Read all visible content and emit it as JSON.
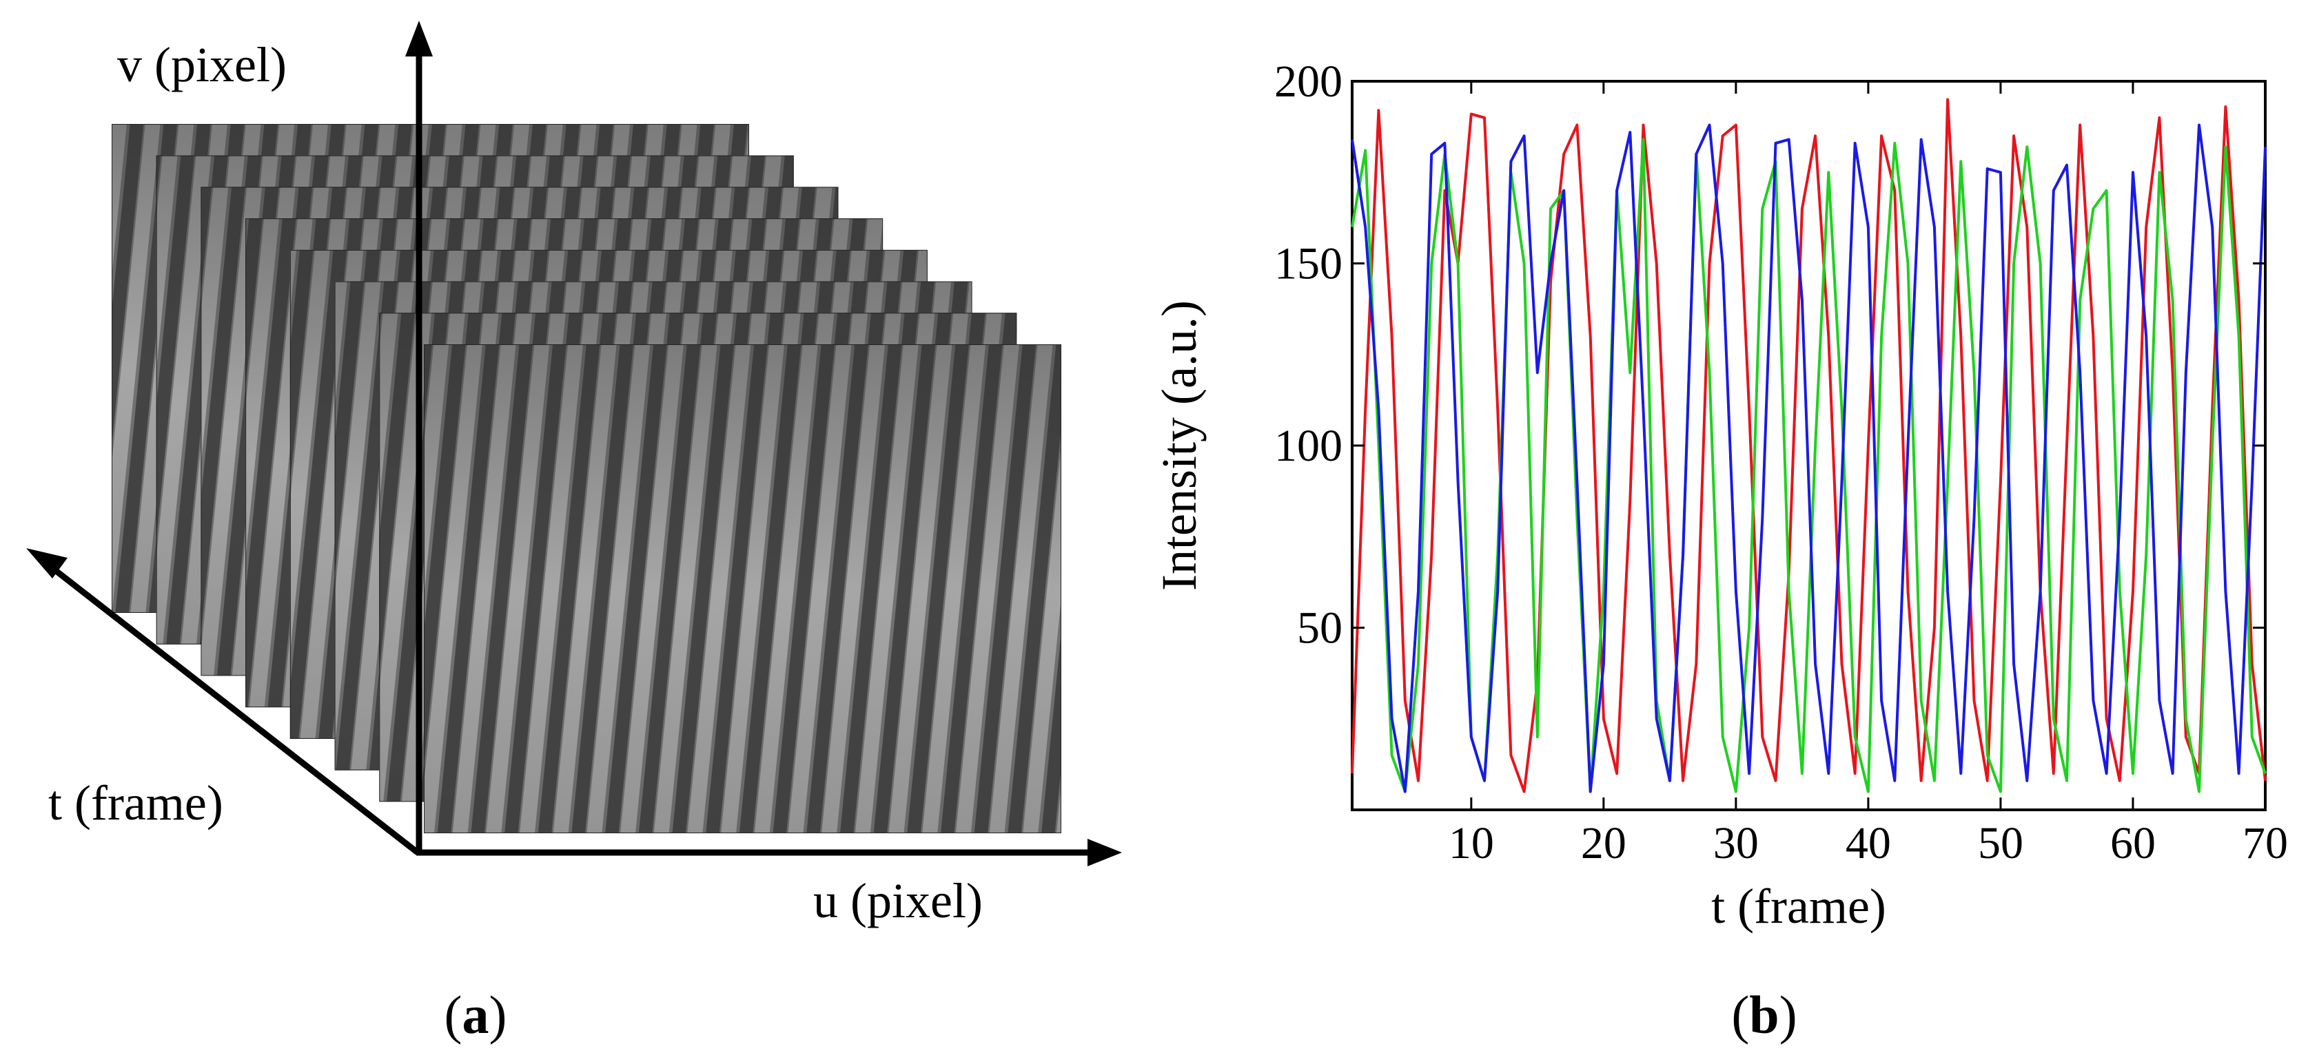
{
  "panel_a": {
    "label_open": "(",
    "label_letter": "a",
    "label_close": ")",
    "axis_v": "v (pixel)",
    "axis_u": "u (pixel)",
    "axis_t": "t (frame)",
    "frame_count": 8
  },
  "panel_b": {
    "label_open": "(",
    "label_letter": "b",
    "label_close": ")"
  },
  "chart_data": {
    "type": "line",
    "xlabel": "t (frame)",
    "ylabel": "Intensity (a.u.)",
    "xlim": [
      1,
      70
    ],
    "ylim": [
      0,
      200
    ],
    "xticks": [
      10,
      20,
      30,
      40,
      50,
      60,
      70
    ],
    "yticks": [
      50,
      100,
      150,
      200
    ],
    "grid": false,
    "x": [
      1,
      2,
      3,
      4,
      5,
      6,
      7,
      8,
      9,
      10,
      11,
      12,
      13,
      14,
      15,
      16,
      17,
      18,
      19,
      20,
      21,
      22,
      23,
      24,
      25,
      26,
      27,
      28,
      29,
      30,
      31,
      32,
      33,
      34,
      35,
      36,
      37,
      38,
      39,
      40,
      41,
      42,
      43,
      44,
      45,
      46,
      47,
      48,
      49,
      50,
      51,
      52,
      53,
      54,
      55,
      56,
      57,
      58,
      59,
      60,
      61,
      62,
      63,
      64,
      65,
      66,
      67,
      68,
      69,
      70
    ],
    "series": [
      {
        "color": "#e8141c",
        "values": [
          10,
          110,
          192,
          130,
          30,
          8,
          70,
          170,
          150,
          191,
          190,
          110,
          15,
          5,
          35,
          145,
          180,
          188,
          130,
          25,
          10,
          85,
          188,
          150,
          70,
          8,
          40,
          150,
          185,
          188,
          110,
          20,
          8,
          65,
          165,
          185,
          130,
          40,
          10,
          100,
          185,
          170,
          60,
          8,
          50,
          195,
          130,
          30,
          8,
          90,
          185,
          160,
          60,
          10,
          100,
          188,
          130,
          25,
          8,
          60,
          160,
          190,
          120,
          20,
          10,
          110,
          193,
          140,
          40,
          8
        ]
      },
      {
        "color": "#1fd11f",
        "values": [
          160,
          181,
          100,
          15,
          5,
          40,
          150,
          180,
          150,
          20,
          8,
          70,
          175,
          150,
          20,
          165,
          170,
          80,
          5,
          60,
          170,
          120,
          184,
          30,
          8,
          70,
          180,
          120,
          20,
          5,
          50,
          165,
          178,
          60,
          10,
          100,
          175,
          110,
          20,
          5,
          130,
          183,
          150,
          30,
          8,
          90,
          178,
          120,
          15,
          5,
          150,
          182,
          150,
          25,
          8,
          140,
          165,
          170,
          60,
          10,
          70,
          175,
          140,
          25,
          5,
          100,
          182,
          130,
          20,
          10
        ]
      },
      {
        "color": "#1a1ae8",
        "values": [
          184,
          160,
          110,
          25,
          5,
          60,
          180,
          183,
          90,
          20,
          8,
          60,
          178,
          185,
          120,
          150,
          170,
          90,
          5,
          40,
          170,
          186,
          110,
          25,
          8,
          70,
          180,
          188,
          150,
          60,
          10,
          80,
          183,
          184,
          140,
          40,
          10,
          90,
          183,
          160,
          30,
          8,
          100,
          184,
          160,
          60,
          10,
          80,
          176,
          175,
          40,
          8,
          60,
          170,
          177,
          120,
          30,
          10,
          80,
          175,
          130,
          30,
          10,
          120,
          188,
          160,
          60,
          10,
          90,
          182
        ]
      }
    ]
  }
}
